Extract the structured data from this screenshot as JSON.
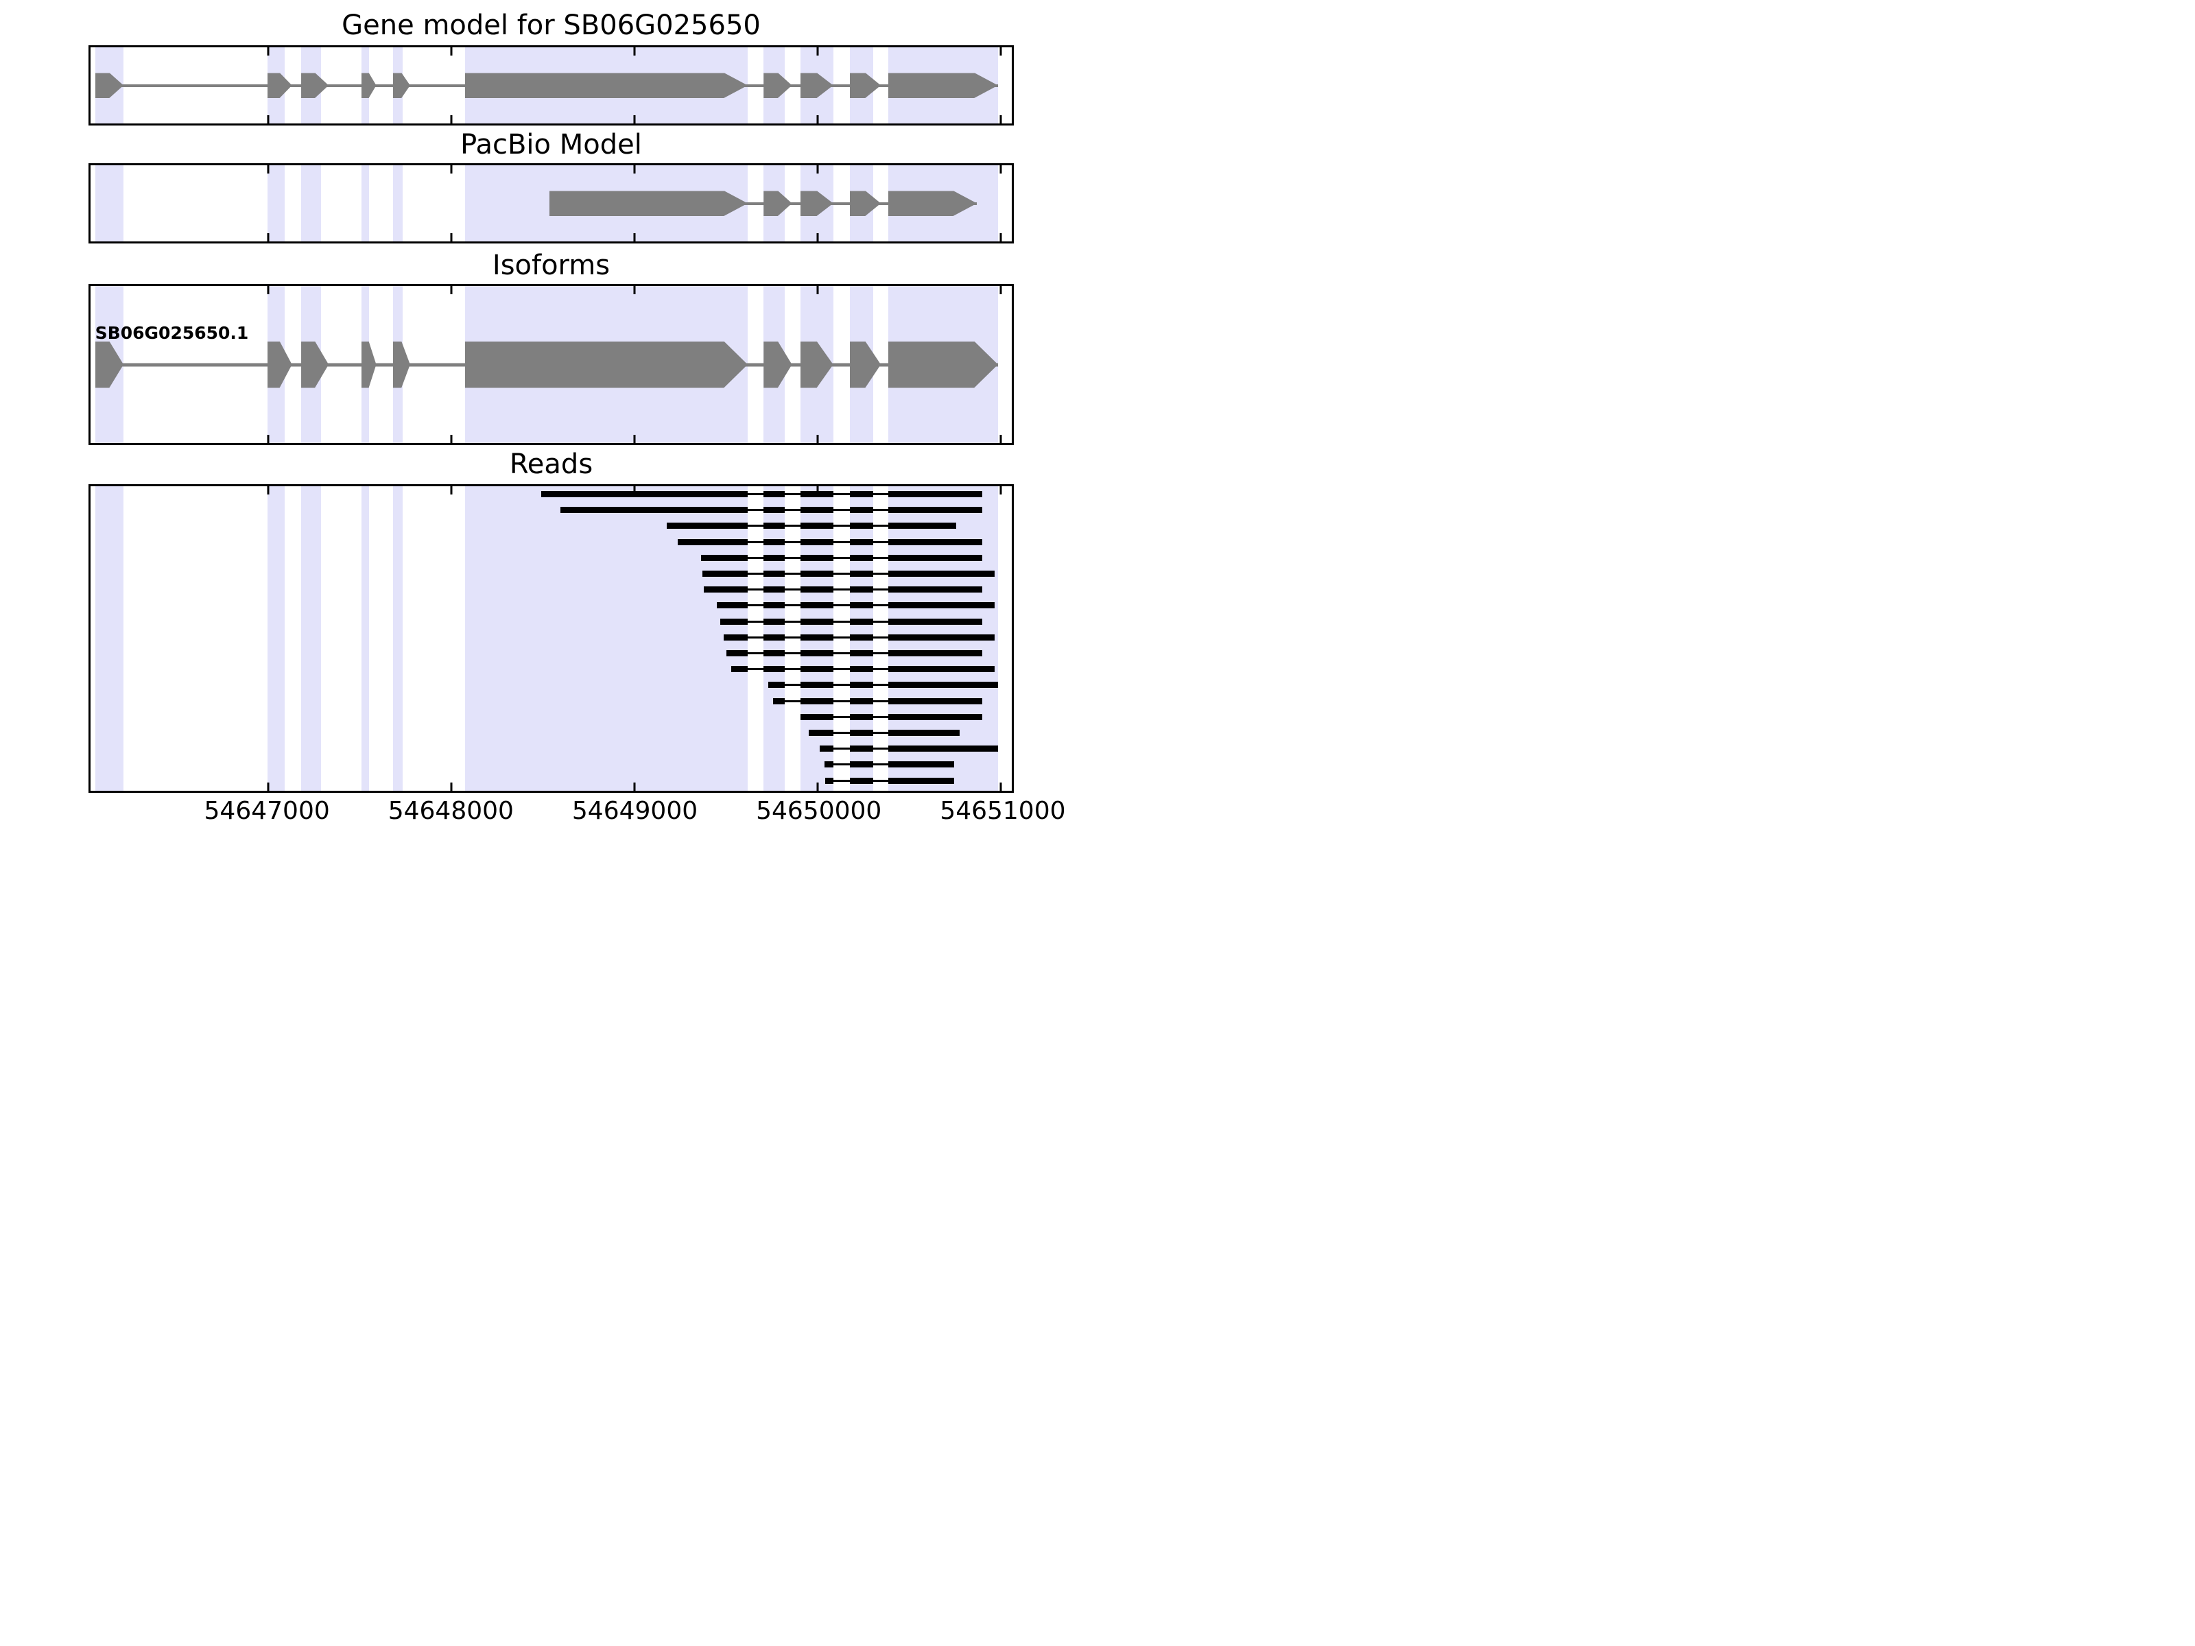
{
  "figure": {
    "background": "#ffffff",
    "panels": [
      {
        "id": "gene-model",
        "title": "Gene model for SB06G025650"
      },
      {
        "id": "pacbio",
        "title": "PacBio Model"
      },
      {
        "id": "isoforms",
        "title": "Isoforms"
      },
      {
        "id": "reads",
        "title": "Reads"
      }
    ]
  },
  "chart_data": {
    "type": "genomic-track-plot",
    "title": "Gene model for SB06G025650",
    "subtitle_tracks": [
      "PacBio Model",
      "Isoforms",
      "Reads"
    ],
    "x_axis": {
      "label": "",
      "domain_bp": [
        54646030,
        54651060
      ],
      "ticks_bp": [
        54647000,
        54648000,
        54649000,
        54650000,
        54651000
      ],
      "tick_labels": [
        "54647000",
        "54648000",
        "54649000",
        "54650000",
        "54651000"
      ],
      "grid": false
    },
    "colors": {
      "exon_fill": "#7f7f7f",
      "read_fill": "#000000",
      "highlight_band": "#e3e3fa",
      "axis": "#000000",
      "text": "#000000",
      "background": "#ffffff"
    },
    "highlight_bands_bp": [
      [
        54646055,
        54646210
      ],
      [
        54646995,
        54647090
      ],
      [
        54647180,
        54647290
      ],
      [
        54647508,
        54647550
      ],
      [
        54647680,
        54647735
      ],
      [
        54648075,
        54649618
      ],
      [
        54649705,
        54649820
      ],
      [
        54649905,
        54650085
      ],
      [
        54650175,
        54650305
      ],
      [
        54650385,
        54650985
      ]
    ],
    "tracks": [
      {
        "name": "Gene model for SB06G025650",
        "track_type": "transcript",
        "strand": "+",
        "exons_bp": [
          [
            54646055,
            54646210
          ],
          [
            54646995,
            54647090
          ],
          [
            54647180,
            54647290
          ],
          [
            54647508,
            54647550
          ],
          [
            54647680,
            54647735
          ],
          [
            54648075,
            54649618
          ],
          [
            54649705,
            54649820
          ],
          [
            54649905,
            54650085
          ],
          [
            54650175,
            54650305
          ],
          [
            54650385,
            54650985
          ]
        ]
      },
      {
        "name": "PacBio Model",
        "track_type": "transcript",
        "strand": "+",
        "exons_bp": [
          [
            54648535,
            54649618
          ],
          [
            54649705,
            54649820
          ],
          [
            54649905,
            54650085
          ],
          [
            54650175,
            54650305
          ],
          [
            54650385,
            54650870
          ]
        ]
      },
      {
        "name": "Isoforms",
        "track_type": "transcript",
        "strand": "+",
        "isoform_label": "SB06G025650.1",
        "exons_bp": [
          [
            54646055,
            54646210
          ],
          [
            54646995,
            54647090
          ],
          [
            54647180,
            54647290
          ],
          [
            54647508,
            54647550
          ],
          [
            54647680,
            54647735
          ],
          [
            54648075,
            54649618
          ],
          [
            54649705,
            54649820
          ],
          [
            54649905,
            54650085
          ],
          [
            54650175,
            54650305
          ],
          [
            54650385,
            54650985
          ]
        ]
      },
      {
        "name": "Reads",
        "track_type": "reads",
        "reads_bp": [
          [
            54648490,
            54650900
          ],
          [
            54648595,
            54650900
          ],
          [
            54649175,
            54650755
          ],
          [
            54649235,
            54650900
          ],
          [
            54649365,
            54650900
          ],
          [
            54649372,
            54650965
          ],
          [
            54649378,
            54650900
          ],
          [
            54649450,
            54650965
          ],
          [
            54649470,
            54650900
          ],
          [
            54649487,
            54650965
          ],
          [
            54649503,
            54650900
          ],
          [
            54649530,
            54650965
          ],
          [
            54649732,
            54650990
          ],
          [
            54649758,
            54650900
          ],
          [
            54649905,
            54650900
          ],
          [
            54649950,
            54650775
          ],
          [
            54650013,
            54650990
          ],
          [
            54650037,
            54650745
          ],
          [
            54650042,
            54650745
          ]
        ]
      }
    ]
  }
}
